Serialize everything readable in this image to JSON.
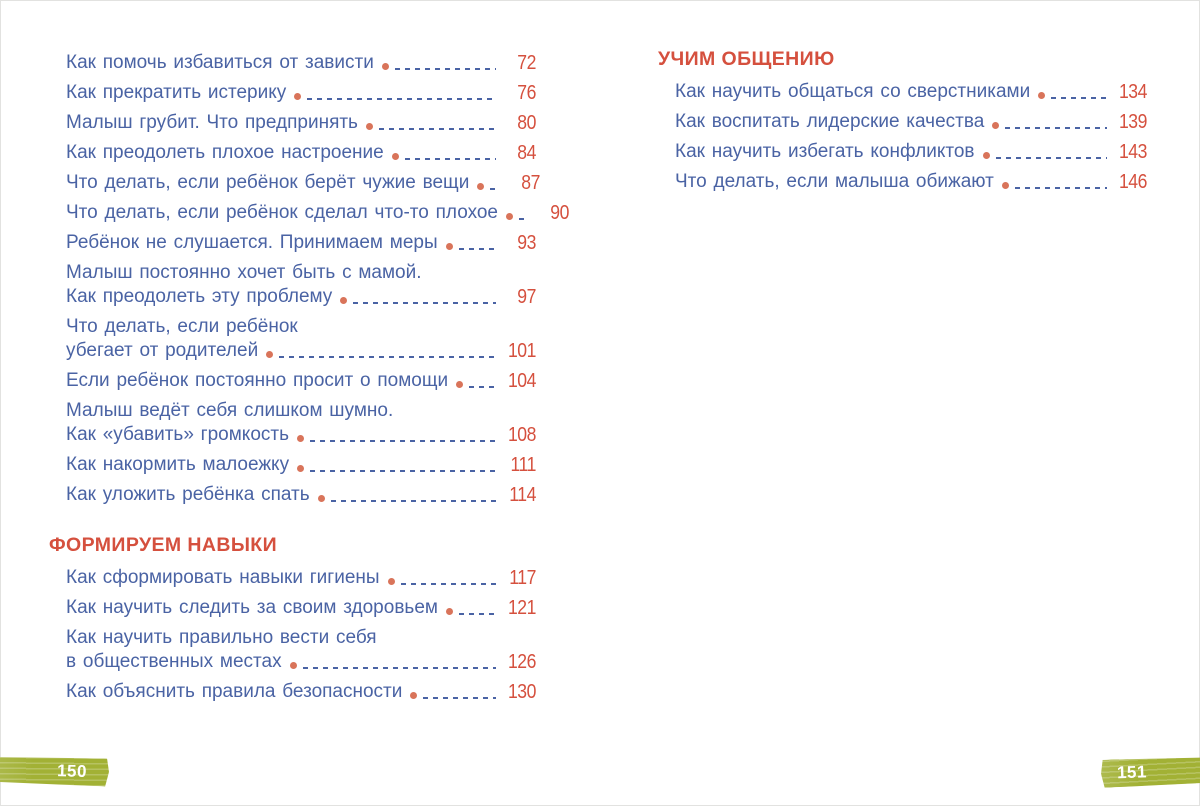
{
  "colors": {
    "entry_text_blue": "#4a63a4",
    "accent_red": "#d5503e",
    "leader_dot": "#d9745a",
    "badge_green": "#a2b135",
    "badge_text": "#ffffff"
  },
  "book_spread": {
    "left_page": {
      "page_badge": "150",
      "sections": [
        {
          "header": "",
          "items": [
            {
              "lines": [
                "Как помочь избавиться от зависти"
              ],
              "page": "72"
            },
            {
              "lines": [
                "Как прекратить истерику"
              ],
              "page": "76"
            },
            {
              "lines": [
                "Малыш грубит. Что предпринять"
              ],
              "page": "80"
            },
            {
              "lines": [
                "Как преодолеть плохое настроение"
              ],
              "page": "84"
            },
            {
              "lines": [
                "Что делать, если ребёнок берёт чужие вещи"
              ],
              "page": "87"
            },
            {
              "lines": [
                "Что делать, если ребёнок сделал что-то плохое"
              ],
              "page": "90"
            },
            {
              "lines": [
                "Ребёнок не слушается. Принимаем меры"
              ],
              "page": "93"
            },
            {
              "lines": [
                "Малыш постоянно хочет быть с мамой.",
                "Как преодолеть эту проблему"
              ],
              "page": "97"
            },
            {
              "lines": [
                "Что делать, если ребёнок",
                "убегает от родителей"
              ],
              "page": "101"
            },
            {
              "lines": [
                "Если ребёнок постоянно просит о помощи"
              ],
              "page": "104"
            },
            {
              "lines": [
                "Малыш ведёт себя слишком шумно.",
                "Как «убавить» громкость"
              ],
              "page": "108"
            },
            {
              "lines": [
                "Как накормить малоежку"
              ],
              "page": "111"
            },
            {
              "lines": [
                "Как уложить ребёнка спать"
              ],
              "page": "114"
            }
          ]
        },
        {
          "header": "ФОРМИРУЕМ НАВЫКИ",
          "items": [
            {
              "lines": [
                "Как сформировать навыки гигиены"
              ],
              "page": "117"
            },
            {
              "lines": [
                "Как научить следить за своим здоровьем"
              ],
              "page": "121"
            },
            {
              "lines": [
                "Как научить правильно вести себя",
                "в общественных местах"
              ],
              "page": "126"
            },
            {
              "lines": [
                "Как объяснить правила безопасности"
              ],
              "page": "130"
            }
          ]
        }
      ]
    },
    "right_page": {
      "page_badge": "151",
      "sections": [
        {
          "header": "УЧИМ ОБЩЕНИЮ",
          "items": [
            {
              "lines": [
                "Как научить общаться со сверстниками"
              ],
              "page": "134"
            },
            {
              "lines": [
                "Как воспитать лидерские качества"
              ],
              "page": "139"
            },
            {
              "lines": [
                "Как научить избегать конфликтов"
              ],
              "page": "143"
            },
            {
              "lines": [
                "Что делать, если малыша обижают"
              ],
              "page": "146"
            }
          ]
        }
      ]
    }
  }
}
